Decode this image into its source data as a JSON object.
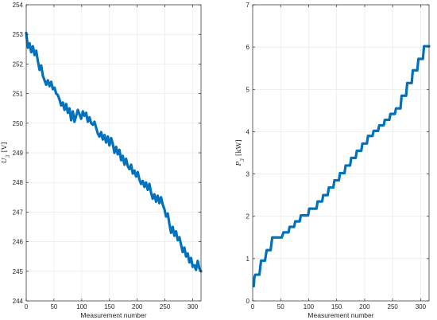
{
  "chart_data": [
    {
      "type": "line",
      "title": "",
      "xlabel": "Measurement number",
      "ylabel_symbol": "U",
      "ylabel_sub": "3",
      "ylabel_unit": "[V]",
      "xlim": [
        0,
        315
      ],
      "ylim": [
        244,
        254
      ],
      "xticks": [
        0,
        50,
        100,
        150,
        200,
        250,
        300
      ],
      "yticks": [
        244,
        245,
        246,
        247,
        248,
        249,
        250,
        251,
        252,
        253,
        254
      ],
      "grid": true,
      "line_color": "#0072BD",
      "series": [
        {
          "x": [
            0,
            3,
            6,
            9,
            12,
            15,
            18,
            21,
            24,
            27,
            30,
            33,
            36,
            39,
            42,
            45,
            48,
            51,
            54,
            57,
            60,
            63,
            66,
            69,
            72,
            75,
            78,
            81,
            84,
            87,
            90,
            93,
            96,
            99,
            102,
            105,
            108,
            111,
            114,
            117,
            120,
            123,
            126,
            129,
            132,
            135,
            138,
            141,
            144,
            147,
            150,
            153,
            156,
            159,
            162,
            165,
            168,
            171,
            174,
            177,
            180,
            183,
            186,
            189,
            192,
            195,
            198,
            201,
            204,
            207,
            210,
            213,
            216,
            219,
            222,
            225,
            228,
            231,
            234,
            237,
            240,
            243,
            246,
            249,
            252,
            255,
            258,
            261,
            264,
            267,
            270,
            273,
            276,
            279,
            282,
            285,
            288,
            291,
            294,
            297,
            300,
            303,
            306,
            309,
            312,
            315
          ],
          "values": [
            253.05,
            252.55,
            252.7,
            252.4,
            252.6,
            252.3,
            252.45,
            252.1,
            251.8,
            251.95,
            251.6,
            251.45,
            251.3,
            251.45,
            251.25,
            251.4,
            251.15,
            251.2,
            251.0,
            250.95,
            250.8,
            250.6,
            250.7,
            250.45,
            250.65,
            250.35,
            250.5,
            250.1,
            250.4,
            250.05,
            250.25,
            250.45,
            250.3,
            250.15,
            250.4,
            250.25,
            250.35,
            250.05,
            250.2,
            250.0,
            249.95,
            250.05,
            249.85,
            249.65,
            249.55,
            249.7,
            249.45,
            249.6,
            249.35,
            249.55,
            249.25,
            249.5,
            249.3,
            249.0,
            249.2,
            248.95,
            249.1,
            248.75,
            248.9,
            248.6,
            248.8,
            248.55,
            248.45,
            248.6,
            248.3,
            248.4,
            248.2,
            248.35,
            248.1,
            247.95,
            248.05,
            247.85,
            248.0,
            247.75,
            247.95,
            247.65,
            247.45,
            247.6,
            247.35,
            247.55,
            247.3,
            247.5,
            247.25,
            247.1,
            246.85,
            246.95,
            246.6,
            246.3,
            246.5,
            246.2,
            246.35,
            246.05,
            246.15,
            245.9,
            245.65,
            245.8,
            245.5,
            245.6,
            245.3,
            245.45,
            245.15,
            245.2,
            245.05,
            245.35,
            245.1,
            245.0
          ]
        }
      ]
    },
    {
      "type": "line",
      "title": "",
      "xlabel": "Measurement number",
      "ylabel_symbol": "P",
      "ylabel_sub": "3",
      "ylabel_unit": "[kW]",
      "xlim": [
        0,
        315
      ],
      "ylim": [
        0,
        7
      ],
      "xticks": [
        0,
        50,
        100,
        150,
        200,
        250,
        300
      ],
      "yticks": [
        0,
        1,
        2,
        3,
        4,
        5,
        6,
        7
      ],
      "grid": true,
      "line_color": "#0072BD",
      "series": [
        {
          "x": [
            2,
            3,
            4,
            5,
            10,
            12,
            15,
            20,
            22,
            25,
            30,
            32,
            35,
            40,
            50,
            52,
            55,
            62,
            64,
            66,
            72,
            74,
            76,
            82,
            84,
            86,
            97,
            99,
            101,
            112,
            114,
            116,
            122,
            124,
            126,
            132,
            134,
            136,
            142,
            144,
            146,
            152,
            154,
            156,
            162,
            164,
            166,
            172,
            174,
            176,
            182,
            184,
            186,
            192,
            194,
            196,
            202,
            204,
            206,
            212,
            214,
            216,
            222,
            224,
            226,
            232,
            234,
            236,
            242,
            244,
            246,
            252,
            254,
            256,
            262,
            264,
            266,
            272,
            274,
            276,
            282,
            284,
            286,
            292,
            294,
            296,
            302,
            304,
            306,
            315
          ],
          "values": [
            0.35,
            0.55,
            0.6,
            0.62,
            0.62,
            0.62,
            0.95,
            0.95,
            0.95,
            1.2,
            1.2,
            1.2,
            1.5,
            1.5,
            1.5,
            1.5,
            1.62,
            1.62,
            1.62,
            1.75,
            1.75,
            1.75,
            1.88,
            1.88,
            1.88,
            2.02,
            2.02,
            2.02,
            2.18,
            2.18,
            2.18,
            2.35,
            2.35,
            2.35,
            2.5,
            2.5,
            2.5,
            2.68,
            2.68,
            2.68,
            2.85,
            2.85,
            2.85,
            3.02,
            3.02,
            3.02,
            3.2,
            3.2,
            3.2,
            3.38,
            3.38,
            3.38,
            3.55,
            3.55,
            3.55,
            3.72,
            3.72,
            3.72,
            3.9,
            3.9,
            3.9,
            4.02,
            4.02,
            4.02,
            4.15,
            4.15,
            4.15,
            4.28,
            4.28,
            4.28,
            4.42,
            4.42,
            4.42,
            4.55,
            4.55,
            4.55,
            4.85,
            4.85,
            4.85,
            5.15,
            5.15,
            5.15,
            5.45,
            5.45,
            5.45,
            5.72,
            5.72,
            5.72,
            6.02,
            6.02
          ]
        }
      ]
    }
  ]
}
